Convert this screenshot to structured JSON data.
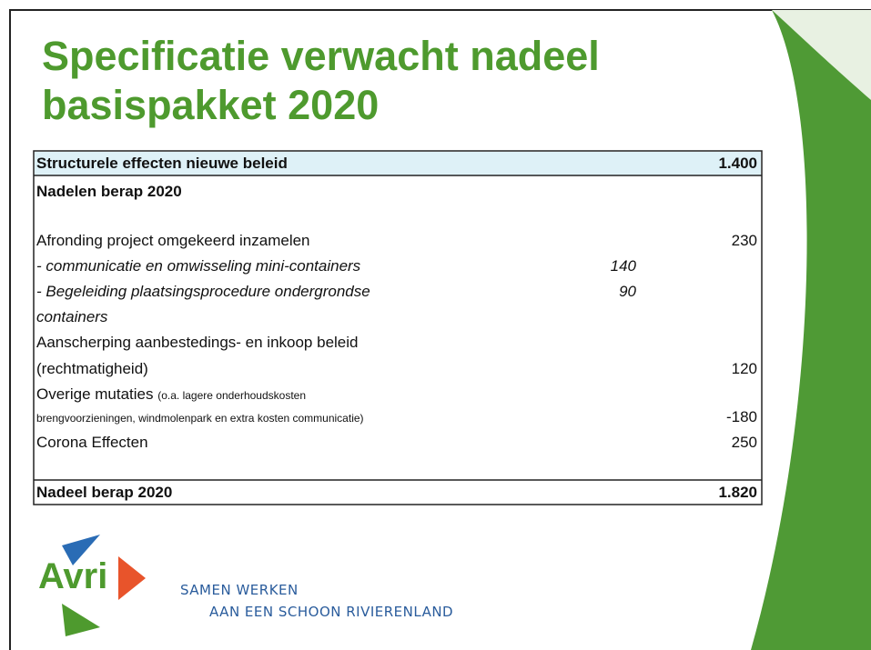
{
  "title": [
    "Specificatie verwacht nadeel",
    "basispakket 2020"
  ],
  "table": {
    "header": {
      "label": "Structurele effecten nieuwe beleid",
      "amount": "1.400"
    },
    "section": "Nadelen berap 2020",
    "rows": [
      {
        "label": "Afronding project omgekeerd inzamelen",
        "amount": "230"
      },
      {
        "label": "- communicatie en omwisseling mini-containers",
        "sub": "140"
      },
      {
        "label": [
          "- Begeleiding plaatsingsprocedure ondergrondse",
          "containers"
        ],
        "sub": "90"
      },
      {
        "label": [
          "Aanscherping aanbestedings- en inkoop beleid",
          "(rechtmatigheid)"
        ],
        "amount": "120"
      },
      {
        "label": "Overige mutaties",
        "note": [
          "(o.a. lagere onderhoudskosten",
          "brengvoorzieningen, windmolenpark en extra kosten communicatie)"
        ],
        "amount": "-180"
      },
      {
        "label": "Corona Effecten",
        "amount": "250"
      }
    ],
    "total": {
      "label": "Nadeel berap 2020",
      "amount": "1.820"
    }
  },
  "logo": "Avri",
  "tagline": [
    "SAMEN WERKEN",
    "AAN EEN SCHOON RIVIERENLAND"
  ]
}
